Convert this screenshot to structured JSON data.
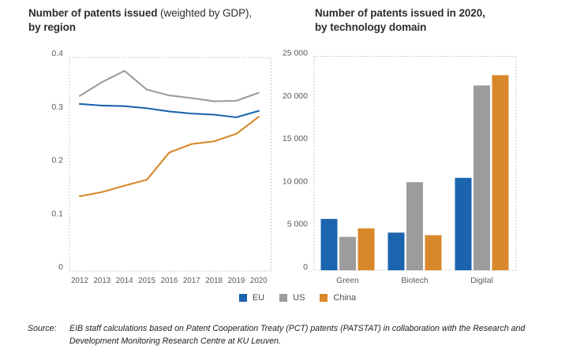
{
  "titles": {
    "left_bold": "Number of patents issued",
    "left_normal": " (weighted by GDP),",
    "left_line2": "by region",
    "right_line1": "Number of patents issued in 2020,",
    "right_line2": "by technology domain"
  },
  "colors": {
    "eu": "#1b64ae",
    "us": "#9c9c9c",
    "china": "#d8882b",
    "plot_border": "#bdbdbd",
    "tick_text": "#595959",
    "title_text": "#2d2d2d"
  },
  "chart_data": [
    {
      "type": "line",
      "title": "Number of patents issued (weighted by GDP), by region",
      "x": [
        2012,
        2013,
        2014,
        2015,
        2016,
        2017,
        2018,
        2019,
        2020
      ],
      "series": [
        {
          "name": "EU",
          "color": "#1b64ae",
          "values": [
            0.313,
            0.31,
            0.309,
            0.305,
            0.299,
            0.295,
            0.293,
            0.288,
            0.3
          ]
        },
        {
          "name": "US",
          "color": "#9c9c9c",
          "values": [
            0.328,
            0.354,
            0.375,
            0.34,
            0.329,
            0.324,
            0.318,
            0.319,
            0.334
          ]
        },
        {
          "name": "China",
          "color": "#d8882b",
          "values": [
            0.14,
            0.148,
            0.16,
            0.171,
            0.222,
            0.238,
            0.243,
            0.257,
            0.289
          ]
        }
      ],
      "ylim": [
        0,
        0.4
      ],
      "yticks": [
        0,
        0.1,
        0.2,
        0.3,
        0.4
      ],
      "ytick_labels": [
        "0",
        "0.1",
        "0.2",
        "0.3",
        "0.4"
      ],
      "grid": false,
      "legend_position": "shared-bottom-center"
    },
    {
      "type": "bar",
      "title": "Number of patents issued in 2020, by technology domain",
      "categories": [
        "Green",
        "Biotech",
        "Digital"
      ],
      "series": [
        {
          "name": "EU",
          "color": "#1b64ae",
          "values": [
            6000,
            4400,
            10800
          ]
        },
        {
          "name": "US",
          "color": "#9c9c9c",
          "values": [
            3900,
            10300,
            21600
          ]
        },
        {
          "name": "China",
          "color": "#d8882b",
          "values": [
            4900,
            4100,
            22800
          ]
        }
      ],
      "ylim": [
        0,
        25000
      ],
      "yticks": [
        0,
        5000,
        10000,
        15000,
        20000,
        25000
      ],
      "ytick_labels": [
        "0",
        "5 000",
        "10 000",
        "15 000",
        "20 000",
        "25 000"
      ],
      "grid": false,
      "legend_position": "shared-bottom-center"
    }
  ],
  "legend": {
    "items": [
      {
        "label": "EU",
        "color": "#1b64ae"
      },
      {
        "label": "US",
        "color": "#9c9c9c"
      },
      {
        "label": "China",
        "color": "#d8882b"
      }
    ]
  },
  "source": {
    "label": "Source:",
    "text": "EIB staff calculations based on Patent Cooperation Treaty (PCT) patents (PATSTAT) in collaboration with the Research and Development Monitoring Research Centre at KU Leuven."
  }
}
